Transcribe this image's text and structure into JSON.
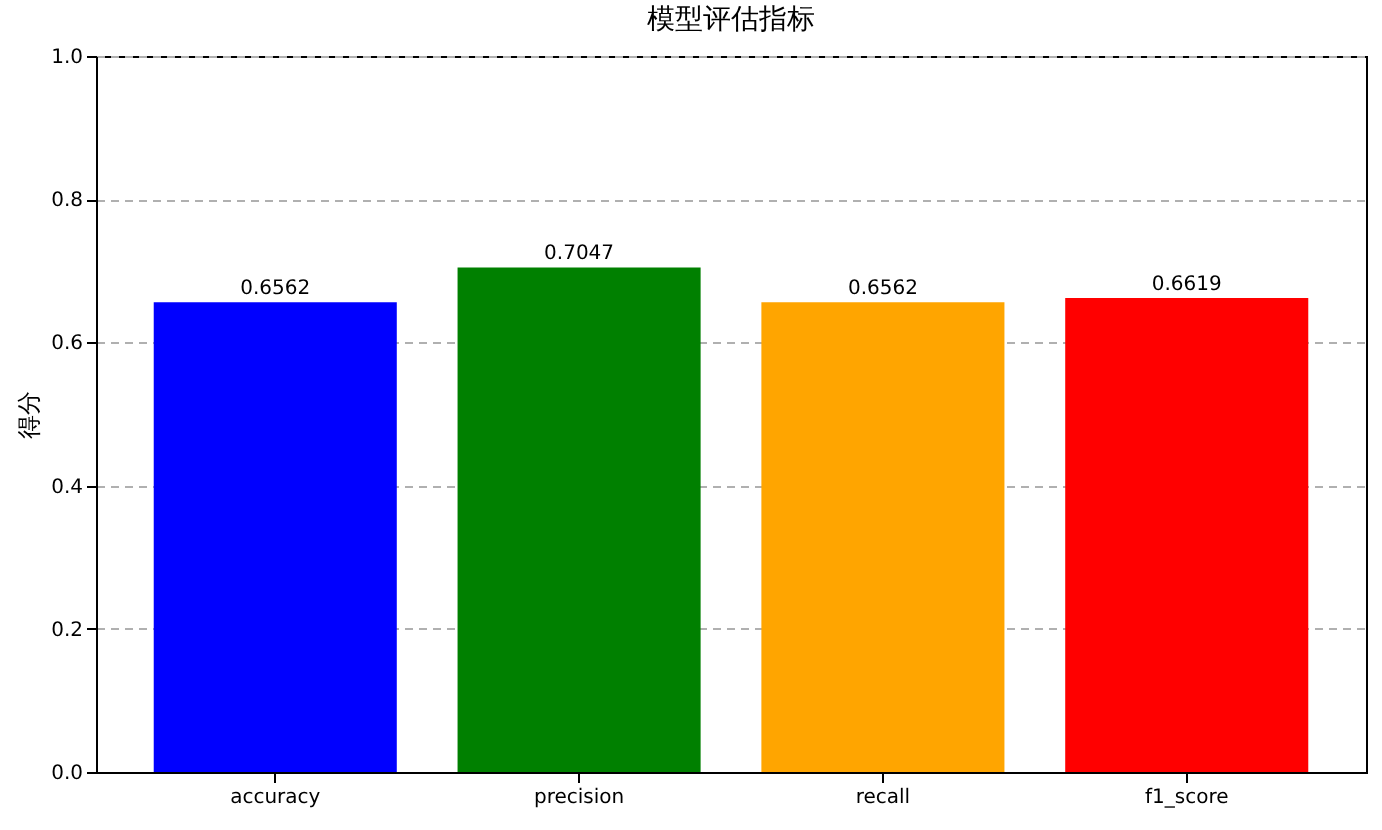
{
  "chart_data": {
    "type": "bar",
    "title": "模型评估指标",
    "ylabel": "得分",
    "categories": [
      "accuracy",
      "precision",
      "recall",
      "f1_score"
    ],
    "values": [
      0.6562,
      0.7047,
      0.6562,
      0.6619
    ],
    "colors": [
      "#0000ff",
      "#008000",
      "#ffa500",
      "#ff0000"
    ],
    "ylim": [
      0,
      1
    ],
    "yticks": [
      {
        "value": 0,
        "label": "0.0"
      },
      {
        "value": 0.2,
        "label": "0.2"
      },
      {
        "value": 0.4,
        "label": "0.4"
      },
      {
        "value": 0.6,
        "label": "0.6"
      },
      {
        "value": 0.8,
        "label": "0.8"
      },
      {
        "value": 1,
        "label": "1.0"
      }
    ],
    "grid": "y",
    "data_labels": true
  }
}
